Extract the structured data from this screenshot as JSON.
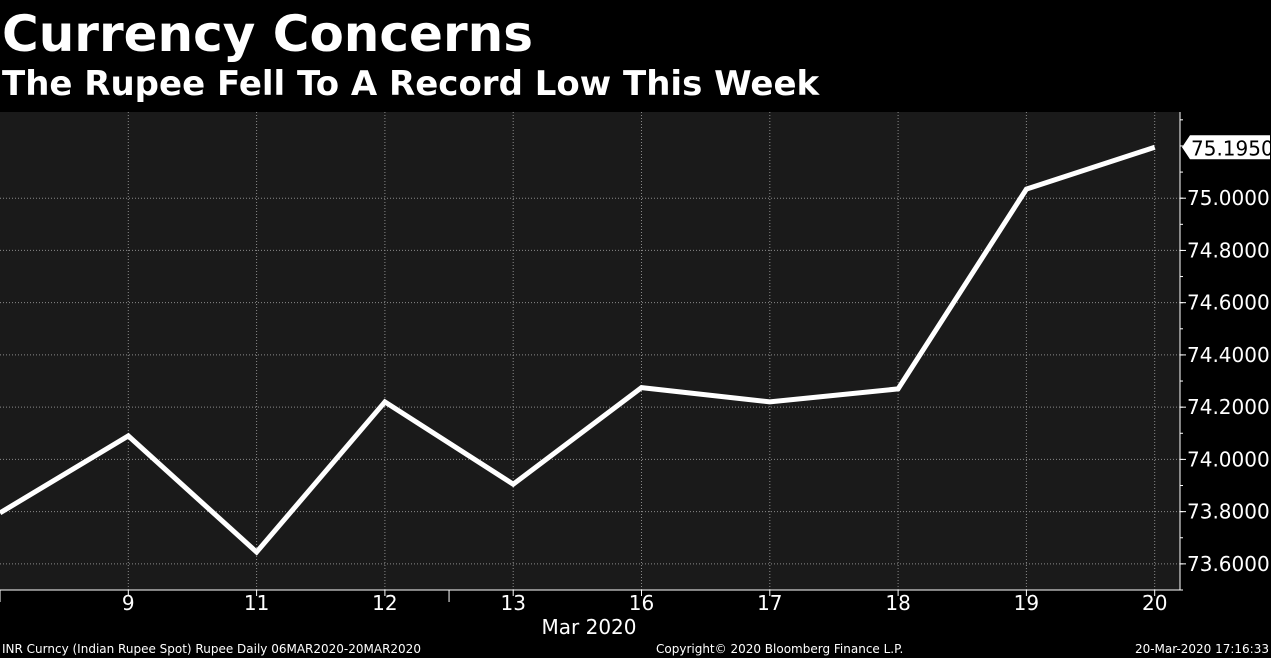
{
  "header": {
    "title": "Currency Concerns",
    "subtitle": "The Rupee Fell To A Record Low This Week"
  },
  "chart_data": {
    "type": "line",
    "title": "Currency Concerns",
    "subtitle": "The Rupee Fell To A Record Low This Week",
    "x_tick_labels": [
      "9",
      "11",
      "12",
      "13",
      "16",
      "17",
      "18",
      "19",
      "20"
    ],
    "x_axis_month_label": "Mar 2020",
    "series": [
      {
        "color": "#ffffff",
        "points": [
          {
            "date": "2020-03-06",
            "value": 73.795
          },
          {
            "date": "2020-03-09",
            "value": 74.09
          },
          {
            "date": "2020-03-11",
            "value": 73.645
          },
          {
            "date": "2020-03-12",
            "value": 74.22
          },
          {
            "date": "2020-03-13",
            "value": 73.905
          },
          {
            "date": "2020-03-16",
            "value": 74.275
          },
          {
            "date": "2020-03-17",
            "value": 74.22
          },
          {
            "date": "2020-03-18",
            "value": 74.27
          },
          {
            "date": "2020-03-19",
            "value": 75.035
          },
          {
            "date": "2020-03-20",
            "value": 75.195
          }
        ]
      }
    ],
    "y_tick_labels": [
      "73.6000",
      "73.8000",
      "74.0000",
      "74.2000",
      "74.4000",
      "74.6000",
      "74.8000",
      "75.0000"
    ],
    "ylim": [
      73.5,
      75.33
    ],
    "last_value_label": "75.1950",
    "y_axis_position": "right",
    "grid": true,
    "plot_background": "#1a1a1a",
    "line_color": "#ffffff"
  },
  "footer": {
    "left": "INR Curncy (Indian Rupee Spot) Rupee  Daily 06MAR2020-20MAR2020",
    "center": "Copyright© 2020 Bloomberg Finance L.P.",
    "right": "20-Mar-2020 17:16:33"
  }
}
